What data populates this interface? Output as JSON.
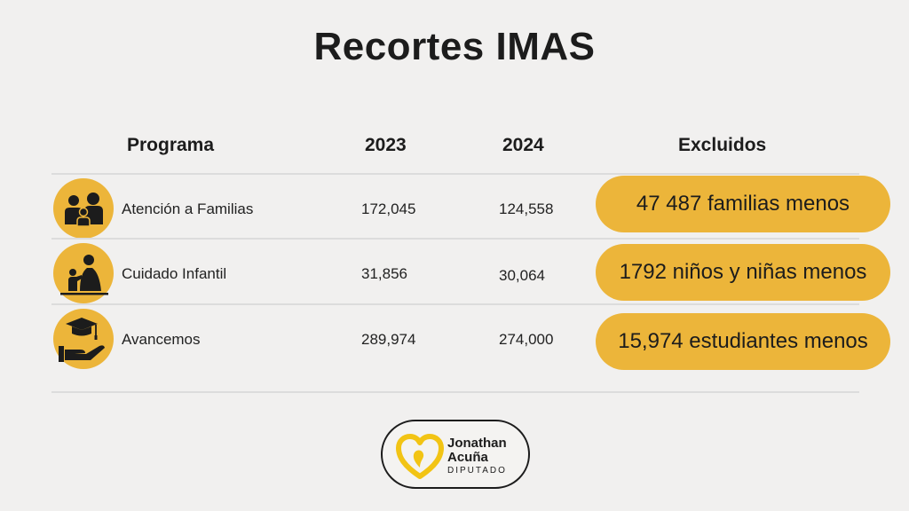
{
  "title": "Recortes IMAS",
  "table": {
    "headers": {
      "programa": "Programa",
      "year_2023": "2023",
      "year_2024": "2024",
      "excluidos": "Excluidos"
    },
    "rows": [
      {
        "icon": "family-icon",
        "programa": "Atención a Familias",
        "v2023": "172,045",
        "v2024": "124,558",
        "excluidos": "47 487 familias menos"
      },
      {
        "icon": "childcare-icon",
        "programa": "Cuidado Infantil",
        "v2023": "31,856",
        "v2024": "30,064",
        "excluidos": "1792 niños y niñas menos"
      },
      {
        "icon": "graduation-hand-icon",
        "programa": "Avancemos",
        "v2023": "289,974",
        "v2024": "274,000",
        "excluidos": "15,974 estudiantes menos"
      }
    ]
  },
  "logo": {
    "first_name": "Jonathan",
    "last_name": "Acuña",
    "role": "DIPUTADO",
    "icon": "heart-logo-icon"
  },
  "colors": {
    "background": "#f1f0ef",
    "accent": "#ecb53a",
    "text": "#1c1c1c"
  }
}
